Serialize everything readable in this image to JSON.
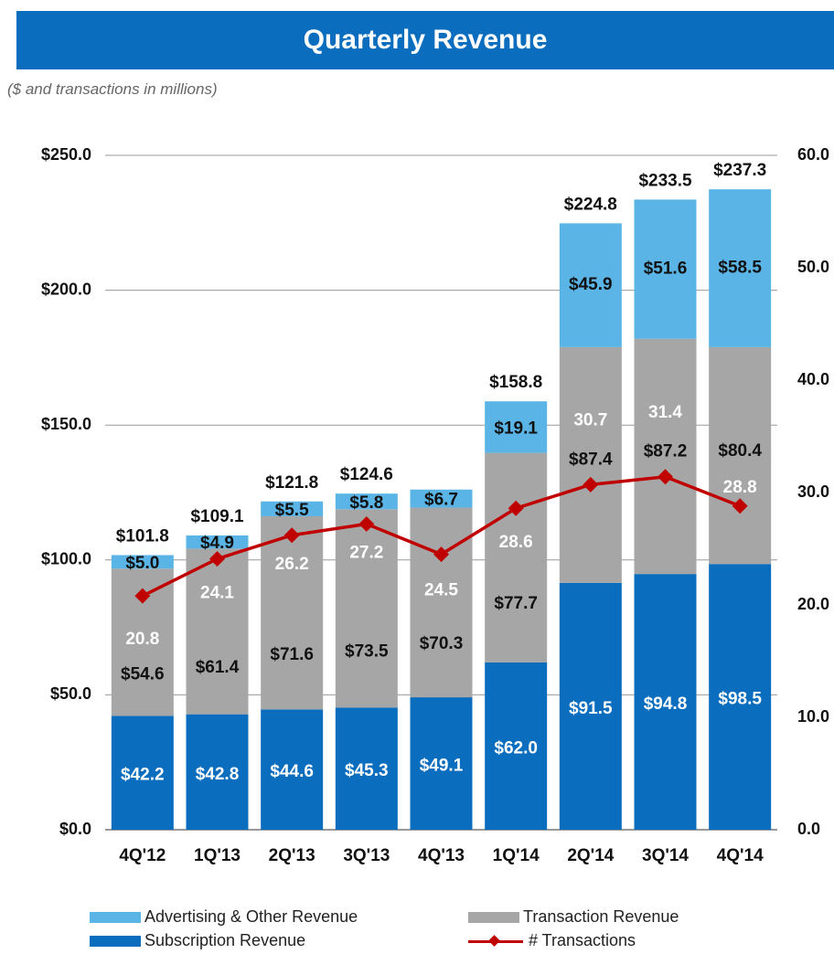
{
  "header": {
    "title": "Quarterly Revenue",
    "subtitle": "($ and transactions in millions)"
  },
  "colors": {
    "banner": "#0a6dbd",
    "subscription": "#0a6dbd",
    "transaction": "#a6a6a6",
    "advertising": "#5ab4e5",
    "transactions_line": "#c00000",
    "grid": "#999999"
  },
  "chart_data": {
    "type": "bar",
    "stacked": true,
    "categories": [
      "4Q'12",
      "1Q'13",
      "2Q'13",
      "3Q'13",
      "4Q'13",
      "1Q'14",
      "2Q'14",
      "3Q'14",
      "4Q'14"
    ],
    "series": [
      {
        "name": "Subscription Revenue",
        "values": [
          42.2,
          42.8,
          44.6,
          45.3,
          49.1,
          62.0,
          91.5,
          94.8,
          98.5
        ],
        "labels": [
          "$42.2",
          "$42.8",
          "$44.6",
          "$45.3",
          "$49.1",
          "$62.0",
          "$91.5",
          "$94.8",
          "$98.5"
        ]
      },
      {
        "name": "Transaction Revenue",
        "values": [
          54.6,
          61.4,
          71.6,
          73.5,
          70.3,
          77.7,
          87.4,
          87.2,
          80.4
        ],
        "labels": [
          "$54.6",
          "$61.4",
          "$71.6",
          "$73.5",
          "$70.3",
          "$77.7",
          "$87.4",
          "$87.2",
          "$80.4"
        ]
      },
      {
        "name": "Advertising & Other Revenue",
        "values": [
          5.0,
          4.9,
          5.5,
          5.8,
          6.7,
          19.1,
          45.9,
          51.6,
          58.5
        ],
        "labels": [
          "$5.0",
          "$4.9",
          "$5.5",
          "$5.8",
          "$6.7",
          "$19.1",
          "$45.9",
          "$51.6",
          "$58.5"
        ]
      }
    ],
    "totals": [
      "$101.8",
      "$109.1",
      "$121.8",
      "$124.6",
      "",
      "$158.8",
      "$224.8",
      "$233.5",
      "$237.3"
    ],
    "line_series": {
      "name": "# Transactions",
      "values": [
        20.8,
        24.1,
        26.2,
        27.2,
        24.5,
        28.6,
        30.7,
        31.4,
        28.8
      ],
      "labels": [
        "20.8",
        "24.1",
        "26.2",
        "27.2",
        "24.5",
        "28.6",
        "30.7",
        "31.4",
        "28.8"
      ]
    },
    "y_left": {
      "ticks": [
        "$0.0",
        "$50.0",
        "$100.0",
        "$150.0",
        "$200.0",
        "$250.0"
      ],
      "ylim": [
        0,
        250
      ]
    },
    "y_right": {
      "ticks": [
        "0.0",
        "10.0",
        "20.0",
        "30.0",
        "40.0",
        "50.0",
        "60.0"
      ],
      "ylim": [
        0,
        60
      ]
    },
    "grid": true,
    "legend": [
      {
        "label": "Advertising & Other Revenue",
        "kind": "bar",
        "series": 2
      },
      {
        "label": "Transaction Revenue",
        "kind": "bar",
        "series": 1
      },
      {
        "label": "Subscription Revenue",
        "kind": "bar",
        "series": 0
      },
      {
        "label": "# Transactions",
        "kind": "line"
      }
    ]
  }
}
